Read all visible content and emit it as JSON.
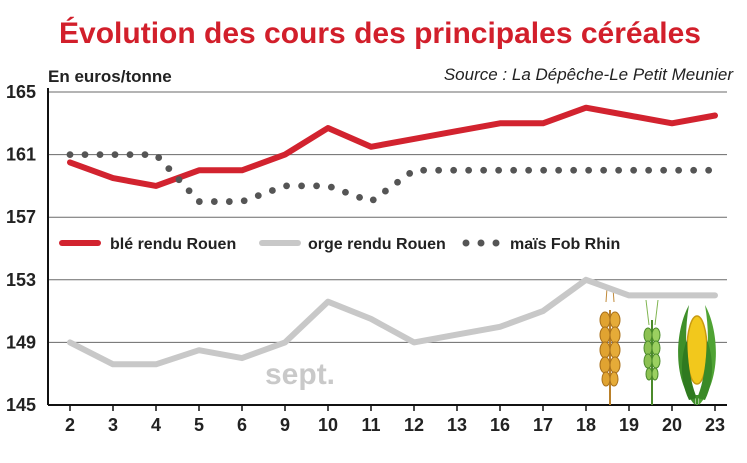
{
  "chart_data": {
    "type": "line",
    "title": "Évolution des cours des principales céréales",
    "unit_label": "En euros/tonne",
    "source": "Source : La Dépêche-Le Petit Meunier",
    "categories": [
      "2",
      "3",
      "4",
      "5",
      "6",
      "9",
      "10",
      "11",
      "12",
      "13",
      "16",
      "17",
      "18",
      "19",
      "20",
      "23"
    ],
    "ylim": [
      145,
      165
    ],
    "yticks": [
      145,
      149,
      153,
      157,
      161,
      165
    ],
    "grid": true,
    "legend_position": "middle-left",
    "annotation": "sept.",
    "series": [
      {
        "name": "blé rendu Rouen",
        "color": "#d2232f",
        "style": "solid",
        "values": [
          160.5,
          159.5,
          159,
          160,
          160,
          161,
          162.7,
          161.5,
          162,
          162.5,
          163,
          163,
          164,
          163.5,
          163,
          163.5
        ]
      },
      {
        "name": "orge rendu Rouen",
        "color": "#c8c8c8",
        "style": "solid",
        "values": [
          149,
          147.6,
          147.6,
          148.5,
          148,
          149,
          151.6,
          150.5,
          149,
          149.5,
          150,
          151,
          153,
          152,
          152,
          152
        ]
      },
      {
        "name": "maïs Fob Rhin",
        "color": "#555555",
        "style": "dotted",
        "values": [
          161,
          161,
          161,
          158,
          158,
          159,
          159,
          158,
          160,
          160,
          160,
          160,
          160,
          160,
          160,
          160
        ]
      }
    ]
  },
  "icons": [
    "wheat-ear-icon",
    "barley-ear-icon",
    "corn-cob-icon"
  ]
}
